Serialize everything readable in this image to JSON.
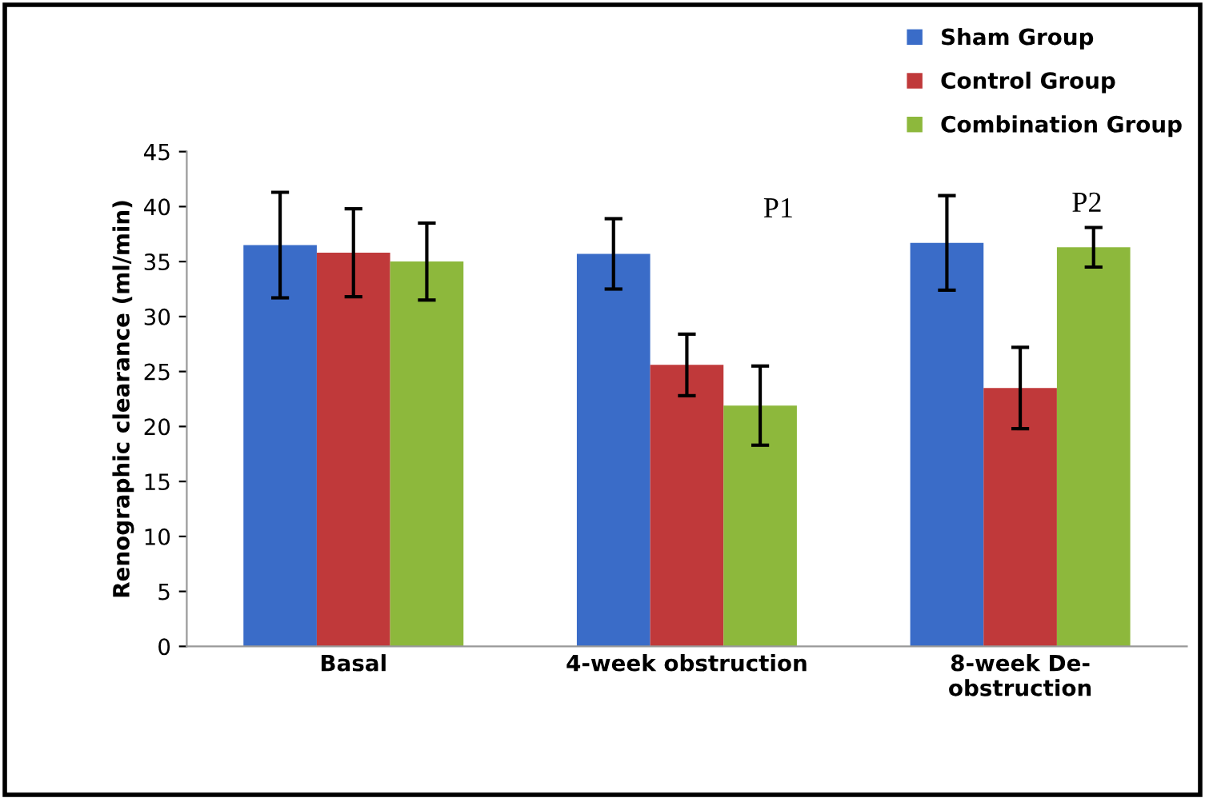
{
  "chart_data": {
    "type": "bar",
    "ylabel": "Renographic clearance (ml/min)",
    "categories": [
      "Basal",
      "4-week obstruction",
      "8-week De-\nobstruction"
    ],
    "series": [
      {
        "name": "Sham Group",
        "color": "#3a6cc8",
        "values": [
          36.5,
          35.7,
          36.7
        ],
        "errors": [
          4.8,
          3.2,
          4.3
        ]
      },
      {
        "name": "Control Group",
        "color": "#c0393a",
        "values": [
          35.8,
          25.6,
          23.5
        ],
        "errors": [
          4.0,
          2.8,
          3.7
        ]
      },
      {
        "name": "Combination Group",
        "color": "#8db83c",
        "values": [
          35.0,
          21.9,
          36.3
        ],
        "errors": [
          3.5,
          3.6,
          1.8
        ]
      }
    ],
    "ylim": [
      0,
      45
    ],
    "yticks": [
      0,
      5,
      10,
      15,
      20,
      25,
      30,
      35,
      40,
      45
    ],
    "annotations": [
      "P1",
      "P2"
    ],
    "grid": false,
    "legend": "top right"
  }
}
